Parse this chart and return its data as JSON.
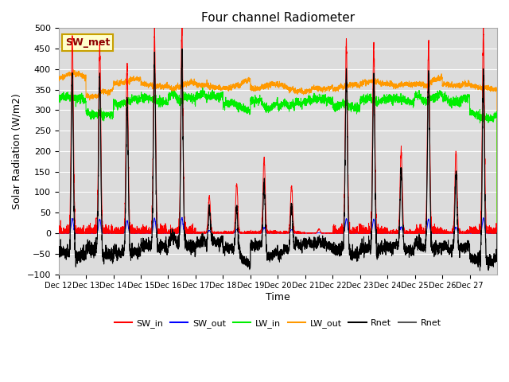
{
  "title": "Four channel Radiometer",
  "xlabel": "Time",
  "ylabel": "Solar Radiation (W/m2)",
  "ylim": [
    -100,
    500
  ],
  "xlim": [
    0,
    16
  ],
  "background_color": "#dcdcdc",
  "annotation_text": "SW_met",
  "annotation_bg": "#ffffcc",
  "annotation_border": "#c8a000",
  "x_tick_labels": [
    "Dec 12",
    "Dec 13",
    "Dec 14",
    "Dec 15",
    "Dec 16",
    "Dec 17",
    "Dec 18",
    "Dec 19",
    "Dec 20",
    "Dec 21",
    "Dec 22",
    "Dec 23",
    "Dec 24",
    "Dec 25",
    "Dec 26",
    "Dec 27"
  ],
  "sw_in_color": "#ff0000",
  "sw_out_color": "#0000ff",
  "lw_in_color": "#00ee00",
  "lw_out_color": "#ff9900",
  "rnet_color": "#000000",
  "rnet2_color": "#555555",
  "sw_in_peaks": [
    480,
    460,
    400,
    480,
    490,
    90,
    120,
    185,
    115,
    10,
    465,
    460,
    200,
    465,
    200,
    490
  ],
  "lw_in_base": [
    330,
    290,
    320,
    325,
    330,
    335,
    310,
    315,
    315,
    325,
    310,
    325,
    325,
    330,
    325,
    285
  ],
  "lw_out_base": [
    385,
    340,
    370,
    360,
    360,
    358,
    362,
    358,
    352,
    352,
    358,
    368,
    362,
    368,
    362,
    355
  ],
  "n_days": 16,
  "pts_per_day": 288
}
